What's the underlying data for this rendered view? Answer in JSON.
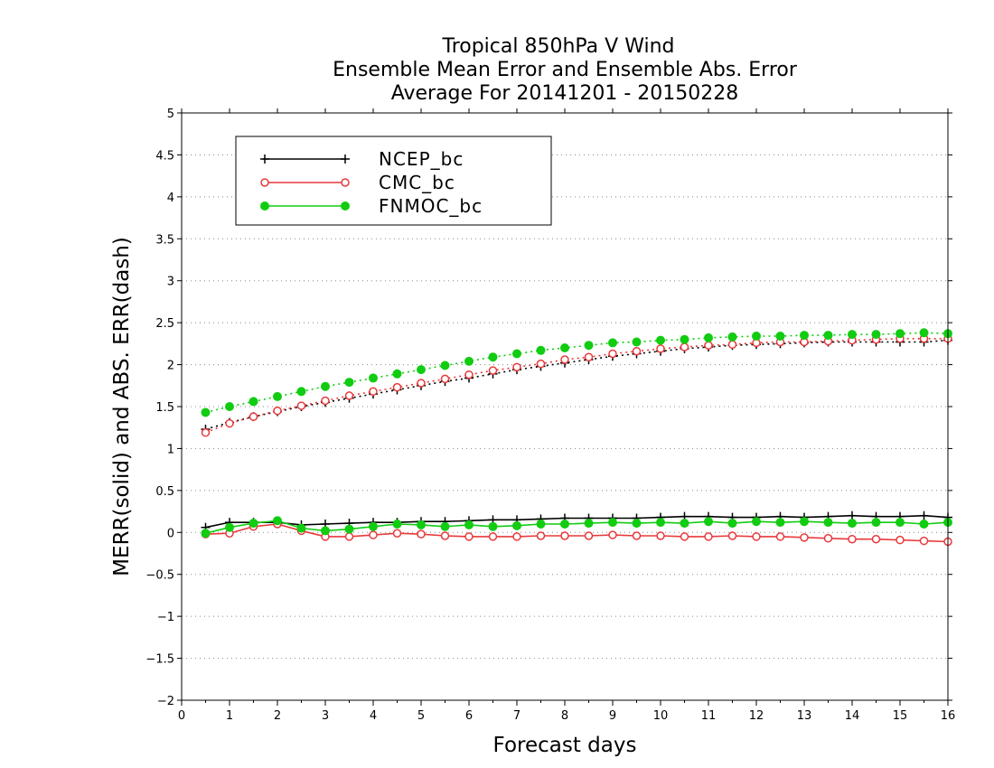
{
  "chart_data": {
    "type": "line",
    "title": [
      "Tropical 850hPa V Wind",
      "Ensemble Mean Error and Ensemble Abs. Error",
      "Average For 20141201 - 20150228"
    ],
    "xlabel": "Forecast days",
    "ylabel": "MERR(solid) and ABS. ERR(dash)",
    "xlim": [
      0,
      16
    ],
    "ylim": [
      -2,
      5
    ],
    "xticks": [
      0,
      1,
      2,
      3,
      4,
      5,
      6,
      7,
      8,
      9,
      10,
      11,
      12,
      13,
      14,
      15,
      16
    ],
    "xtick_labels": [
      "0",
      "1",
      "2",
      "3",
      "4",
      "5",
      "6",
      "7",
      "8",
      "9",
      "10",
      "11",
      "12",
      "13",
      "14",
      "15",
      "16"
    ],
    "yticks": [
      -2,
      -1.5,
      -1,
      -0.5,
      0,
      0.5,
      1,
      1.5,
      2,
      2.5,
      3,
      3.5,
      4,
      4.5,
      5
    ],
    "ytick_labels": [
      "−2",
      "−1.5",
      "−1",
      "−0.5",
      "0",
      "0.5",
      "1",
      "1.5",
      "2",
      "2.5",
      "3",
      "3.5",
      "4",
      "4.5",
      "5"
    ],
    "grid": "horizontal dotted",
    "legend_position": "top-left",
    "x": [
      0.5,
      1,
      1.5,
      2,
      2.5,
      3,
      3.5,
      4,
      4.5,
      5,
      5.5,
      6,
      6.5,
      7,
      7.5,
      8,
      8.5,
      9,
      9.5,
      10,
      10.5,
      11,
      11.5,
      12,
      12.5,
      13,
      13.5,
      14,
      14.5,
      15,
      15.5,
      16
    ],
    "series": [
      {
        "name": "NCEP_bc",
        "color": "#000000",
        "marker": "plus",
        "merr": [
          0.06,
          0.12,
          0.12,
          0.12,
          0.09,
          0.1,
          0.11,
          0.12,
          0.12,
          0.13,
          0.13,
          0.14,
          0.15,
          0.15,
          0.16,
          0.17,
          0.17,
          0.17,
          0.17,
          0.18,
          0.19,
          0.19,
          0.18,
          0.18,
          0.19,
          0.18,
          0.19,
          0.2,
          0.19,
          0.19,
          0.2,
          0.18
        ],
        "abs_err": [
          1.23,
          1.31,
          1.38,
          1.44,
          1.5,
          1.55,
          1.6,
          1.65,
          1.7,
          1.75,
          1.8,
          1.84,
          1.89,
          1.94,
          1.98,
          2.02,
          2.06,
          2.1,
          2.13,
          2.16,
          2.19,
          2.21,
          2.23,
          2.24,
          2.25,
          2.26,
          2.27,
          2.27,
          2.27,
          2.27,
          2.27,
          2.29
        ]
      },
      {
        "name": "CMC_bc",
        "color": "#e8393b",
        "marker": "open-circle",
        "merr": [
          -0.02,
          -0.01,
          0.07,
          0.1,
          0.02,
          -0.05,
          -0.05,
          -0.03,
          -0.01,
          -0.02,
          -0.04,
          -0.05,
          -0.05,
          -0.05,
          -0.04,
          -0.04,
          -0.04,
          -0.03,
          -0.04,
          -0.04,
          -0.05,
          -0.05,
          -0.04,
          -0.05,
          -0.05,
          -0.06,
          -0.07,
          -0.08,
          -0.08,
          -0.09,
          -0.1,
          -0.11
        ],
        "abs_err": [
          1.19,
          1.3,
          1.38,
          1.45,
          1.51,
          1.57,
          1.63,
          1.68,
          1.73,
          1.78,
          1.83,
          1.88,
          1.93,
          1.97,
          2.01,
          2.06,
          2.09,
          2.13,
          2.16,
          2.19,
          2.21,
          2.23,
          2.24,
          2.26,
          2.27,
          2.27,
          2.28,
          2.29,
          2.3,
          2.31,
          2.31,
          2.31
        ]
      },
      {
        "name": "FNMOC_bc",
        "color": "#11cc11",
        "marker": "filled-circle",
        "merr": [
          -0.01,
          0.06,
          0.11,
          0.14,
          0.05,
          0.02,
          0.04,
          0.07,
          0.1,
          0.09,
          0.07,
          0.09,
          0.07,
          0.08,
          0.1,
          0.1,
          0.11,
          0.12,
          0.11,
          0.12,
          0.11,
          0.13,
          0.11,
          0.13,
          0.12,
          0.13,
          0.12,
          0.11,
          0.12,
          0.12,
          0.1,
          0.12
        ],
        "abs_err": [
          1.43,
          1.5,
          1.56,
          1.62,
          1.68,
          1.74,
          1.79,
          1.84,
          1.89,
          1.94,
          1.99,
          2.04,
          2.09,
          2.13,
          2.17,
          2.2,
          2.23,
          2.26,
          2.27,
          2.29,
          2.3,
          2.32,
          2.33,
          2.34,
          2.34,
          2.35,
          2.35,
          2.36,
          2.36,
          2.37,
          2.38,
          2.37
        ]
      }
    ]
  }
}
